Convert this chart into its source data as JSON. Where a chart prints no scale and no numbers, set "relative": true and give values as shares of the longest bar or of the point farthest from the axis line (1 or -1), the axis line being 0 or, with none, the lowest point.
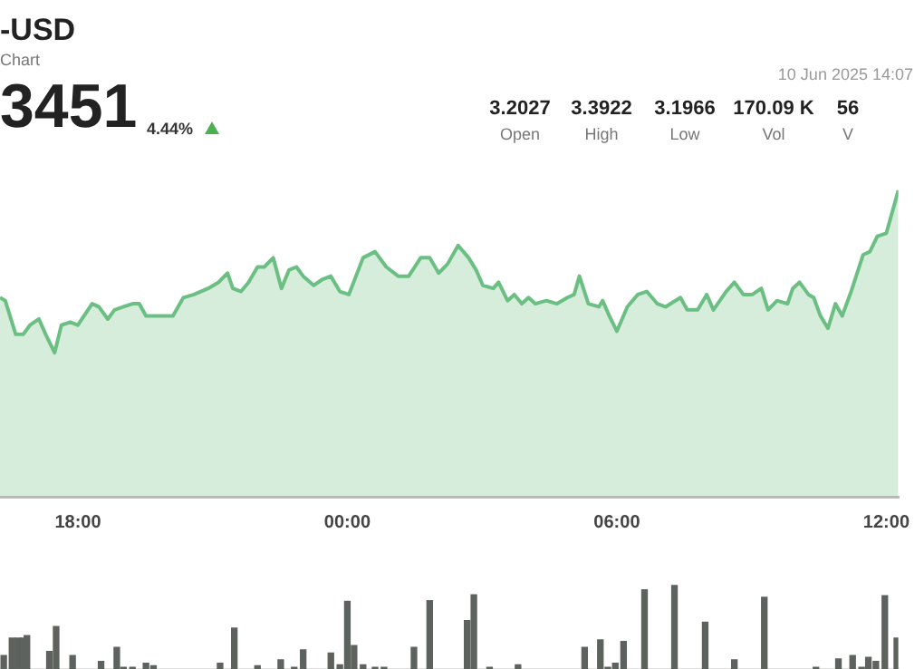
{
  "chart_data": [
    {
      "type": "other",
      "title": "-USD",
      "subtitle": "Chart",
      "annotations": [
        "3451",
        "4.44%",
        "10 Jun 2025 14:07",
        "3.2027",
        "Open",
        "3.3922",
        "High",
        "3.1966",
        "Low",
        "170.09 K",
        "Vol",
        "56",
        "V"
      ]
    },
    {
      "type": "area",
      "relative": true,
      "color": "#6cbf83",
      "xlim": [
        "2025-06-09T16:16",
        "2025-06-10T12:16"
      ],
      "xticks": [
        {
          "value": "2025-06-09T18:00",
          "label": "18:00"
        },
        {
          "value": "2025-06-10T00:00",
          "label": "00:00"
        },
        {
          "value": "2025-06-10T06:00",
          "label": "06:00"
        },
        {
          "value": "2025-06-10T12:00",
          "label": "12:00"
        }
      ],
      "x": [
        "2025-06-09T16:16",
        "2025-06-09T16:23",
        "2025-06-09T16:37",
        "2025-06-09T16:47",
        "2025-06-09T16:56",
        "2025-06-09T17:08",
        "2025-06-09T17:17",
        "2025-06-09T17:29",
        "2025-06-09T17:38",
        "2025-06-09T17:50",
        "2025-06-09T18:00",
        "2025-06-09T18:19",
        "2025-06-09T18:28",
        "2025-06-09T18:40",
        "2025-06-09T18:49",
        "2025-06-09T19:01",
        "2025-06-09T19:13",
        "2025-06-09T19:22",
        "2025-06-09T19:31",
        "2025-06-09T19:43",
        "2025-06-09T19:53",
        "2025-06-09T20:07",
        "2025-06-09T20:21",
        "2025-06-09T20:35",
        "2025-06-09T20:54",
        "2025-06-09T21:08",
        "2025-06-09T21:20",
        "2025-06-09T21:27",
        "2025-06-09T21:38",
        "2025-06-09T21:48",
        "2025-06-09T22:00",
        "2025-06-09T22:09",
        "2025-06-09T22:21",
        "2025-06-09T22:32",
        "2025-06-09T22:42",
        "2025-06-09T22:52",
        "2025-06-09T23:01",
        "2025-06-09T23:15",
        "2025-06-09T23:27",
        "2025-06-09T23:38",
        "2025-06-09T23:50",
        "2025-06-10T00:02",
        "2025-06-10T00:21",
        "2025-06-10T00:37",
        "2025-06-10T00:52",
        "2025-06-10T01:08",
        "2025-06-10T01:22",
        "2025-06-10T01:38",
        "2025-06-10T01:50",
        "2025-06-10T02:02",
        "2025-06-10T02:14",
        "2025-06-10T02:28",
        "2025-06-10T02:42",
        "2025-06-10T02:52",
        "2025-06-10T03:01",
        "2025-06-10T03:15",
        "2025-06-10T03:22",
        "2025-06-10T03:34",
        "2025-06-10T03:43",
        "2025-06-10T03:53",
        "2025-06-10T04:02",
        "2025-06-10T04:11",
        "2025-06-10T04:26",
        "2025-06-10T04:40",
        "2025-06-10T04:54",
        "2025-06-10T05:03",
        "2025-06-10T05:10",
        "2025-06-10T05:22",
        "2025-06-10T05:36",
        "2025-06-10T05:41",
        "2025-06-10T05:50",
        "2025-06-10T06:00",
        "2025-06-10T06:14",
        "2025-06-10T06:28",
        "2025-06-10T06:40",
        "2025-06-10T06:54",
        "2025-06-10T07:05",
        "2025-06-10T07:25",
        "2025-06-10T07:34",
        "2025-06-10T07:48",
        "2025-06-10T08:00",
        "2025-06-10T08:09",
        "2025-06-10T08:26",
        "2025-06-10T08:37",
        "2025-06-10T08:49",
        "2025-06-10T09:01",
        "2025-06-10T09:13",
        "2025-06-10T09:22",
        "2025-06-10T09:34",
        "2025-06-10T09:48",
        "2025-06-10T09:55",
        "2025-06-10T10:04",
        "2025-06-10T10:16",
        "2025-06-10T10:23",
        "2025-06-10T10:32",
        "2025-06-10T10:42",
        "2025-06-10T10:52",
        "2025-06-10T11:01",
        "2025-06-10T11:13",
        "2025-06-10T11:29",
        "2025-06-10T11:38",
        "2025-06-10T11:48",
        "2025-06-10T12:00",
        "2025-06-10T12:16"
      ],
      "values": [
        0.65,
        0.64,
        0.53,
        0.53,
        0.56,
        0.58,
        0.53,
        0.47,
        0.56,
        0.57,
        0.56,
        0.63,
        0.62,
        0.58,
        0.61,
        0.62,
        0.63,
        0.63,
        0.59,
        0.59,
        0.59,
        0.59,
        0.65,
        0.66,
        0.68,
        0.7,
        0.73,
        0.68,
        0.67,
        0.7,
        0.75,
        0.75,
        0.78,
        0.68,
        0.74,
        0.75,
        0.72,
        0.69,
        0.71,
        0.72,
        0.67,
        0.66,
        0.78,
        0.8,
        0.75,
        0.72,
        0.72,
        0.78,
        0.78,
        0.73,
        0.76,
        0.82,
        0.78,
        0.74,
        0.69,
        0.68,
        0.7,
        0.64,
        0.66,
        0.63,
        0.65,
        0.63,
        0.64,
        0.63,
        0.65,
        0.66,
        0.72,
        0.63,
        0.62,
        0.64,
        0.59,
        0.54,
        0.62,
        0.66,
        0.67,
        0.63,
        0.62,
        0.65,
        0.61,
        0.61,
        0.66,
        0.61,
        0.67,
        0.7,
        0.66,
        0.66,
        0.68,
        0.61,
        0.64,
        0.63,
        0.68,
        0.7,
        0.66,
        0.65,
        0.59,
        0.55,
        0.63,
        0.59,
        0.67,
        0.79,
        0.8,
        0.85,
        0.86,
        1
      ]
    },
    {
      "type": "bar",
      "relative": true,
      "color": "#5e625f",
      "xlim": [
        "2025-06-09T16:16",
        "2025-06-10T12:16"
      ],
      "x": [
        "2025-06-09T16:21",
        "2025-06-09T16:32",
        "2025-06-09T16:40",
        "2025-06-09T16:47",
        "2025-06-09T16:52",
        "2025-06-09T17:22",
        "2025-06-09T17:31",
        "2025-06-09T17:53",
        "2025-06-09T18:31",
        "2025-06-09T18:52",
        "2025-06-09T19:01",
        "2025-06-09T19:13",
        "2025-06-09T19:31",
        "2025-06-09T19:41",
        "2025-06-09T21:10",
        "2025-06-09T21:29",
        "2025-06-09T22:00",
        "2025-06-09T22:31",
        "2025-06-09T22:49",
        "2025-06-09T23:01",
        "2025-06-09T23:38",
        "2025-06-09T23:50",
        "2025-06-10T00:00",
        "2025-06-10T00:09",
        "2025-06-10T00:21",
        "2025-06-10T00:37",
        "2025-06-10T00:49",
        "2025-06-10T01:29",
        "2025-06-10T01:50",
        "2025-06-10T02:40",
        "2025-06-10T02:49",
        "2025-06-10T03:10",
        "2025-06-10T03:48",
        "2025-06-10T05:17",
        "2025-06-10T05:38",
        "2025-06-10T05:48",
        "2025-06-10T05:58",
        "2025-06-10T06:09",
        "2025-06-10T06:37",
        "2025-06-10T07:17",
        "2025-06-10T07:58",
        "2025-06-10T08:37",
        "2025-06-10T09:17",
        "2025-06-10T10:26",
        "2025-06-10T10:56",
        "2025-06-10T11:15",
        "2025-06-10T11:27",
        "2025-06-10T11:36",
        "2025-06-10T11:46",
        "2025-06-10T11:58",
        "2025-06-10T12:14"
      ],
      "values": [
        0.16,
        0.37,
        0.37,
        0.37,
        0.4,
        0.21,
        0.51,
        0.16,
        0.09,
        0.26,
        0.02,
        0.02,
        0.07,
        0.04,
        0.07,
        0.49,
        0.04,
        0.11,
        0.02,
        0.23,
        0.19,
        0.05,
        0.81,
        0.28,
        0.05,
        0.02,
        0.02,
        0.26,
        0.82,
        0.58,
        0.89,
        0.02,
        0.05,
        0.26,
        0.35,
        0.02,
        0.07,
        0.33,
        0.95,
        1,
        0.56,
        0.11,
        0.86,
        0.02,
        0.12,
        0.16,
        0.02,
        0.14,
        0.09,
        0.88,
        0.37
      ]
    }
  ]
}
